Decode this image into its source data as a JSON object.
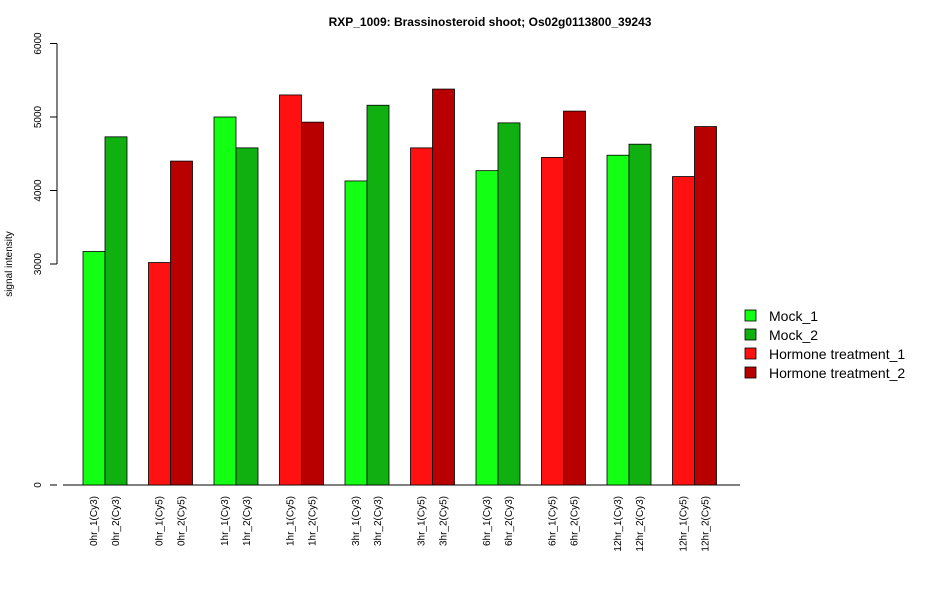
{
  "chart_data": {
    "type": "bar",
    "title": "RXP_1009: Brassinosteroid shoot; Os02g0113800_39243",
    "xlabel": "",
    "ylabel": "signal intensity",
    "ylim": [
      0,
      6000
    ],
    "y_ticks": [
      0,
      3000,
      4000,
      5000,
      6000
    ],
    "y_axis_break": true,
    "grid": false,
    "legend_position": "right",
    "categories": [
      "0hr_1(Cy3)",
      "0hr_2(Cy3)",
      "0hr_1(Cy5)",
      "0hr_2(Cy5)",
      "1hr_1(Cy3)",
      "1hr_2(Cy3)",
      "1hr_1(Cy5)",
      "1hr_2(Cy5)",
      "3hr_1(Cy3)",
      "3hr_2(Cy3)",
      "3hr_1(Cy5)",
      "3hr_2(Cy5)",
      "6hr_1(Cy3)",
      "6hr_2(Cy3)",
      "6hr_1(Cy5)",
      "6hr_2(Cy5)",
      "12hr_1(Cy3)",
      "12hr_2(Cy3)",
      "12hr_1(Cy5)",
      "12hr_2(Cy5)"
    ],
    "values": [
      3170,
      4730,
      3020,
      4400,
      5000,
      4580,
      5300,
      4930,
      4130,
      5160,
      4580,
      5380,
      4270,
      4920,
      4450,
      5080,
      4480,
      4630,
      4190,
      4870
    ],
    "bar_series": [
      0,
      1,
      2,
      3,
      0,
      1,
      2,
      3,
      0,
      1,
      2,
      3,
      0,
      1,
      2,
      3,
      0,
      1,
      2,
      3
    ],
    "series": [
      {
        "name": "Mock_1",
        "color": "#13ff13"
      },
      {
        "name": "Mock_2",
        "color": "#11b011"
      },
      {
        "name": "Hormone treatment_1",
        "color": "#ff1111"
      },
      {
        "name": "Hormone treatment_2",
        "color": "#b80000"
      }
    ]
  }
}
